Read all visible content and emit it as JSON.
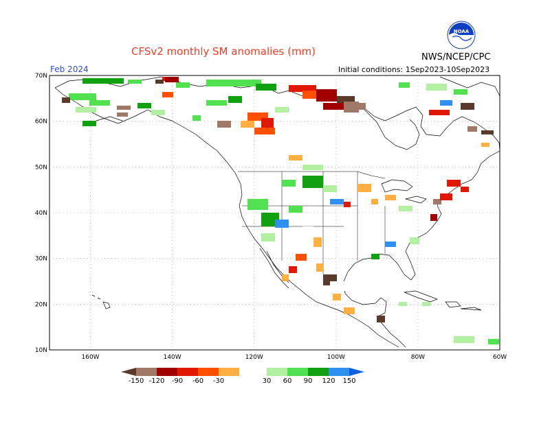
{
  "header": {
    "title": "CFSv2 monthly SM anomalies (mm)",
    "valid_month": "Feb 2024",
    "initial_conditions": "Initial conditions: 1Sep2023-10Sep2023",
    "agency": "NWS/NCEP/CPC",
    "logo_label": "NOAA"
  },
  "map": {
    "lat_labels": [
      "70N",
      "60N",
      "50N",
      "40N",
      "30N",
      "20N",
      "10N"
    ],
    "lon_labels": [
      "160W",
      "140W",
      "120W",
      "100W",
      "80W",
      "60W"
    ],
    "extent": {
      "lon_min": -170,
      "lon_max": -60,
      "lat_min": 10,
      "lat_max": 70
    }
  },
  "colorbar": {
    "labels": [
      "-150",
      "-120",
      "-90",
      "-60",
      "-30",
      "30",
      "60",
      "90",
      "120",
      "150"
    ],
    "colors": [
      "#5a3a2a",
      "#a07868",
      "#a00000",
      "#e01800",
      "#ff5000",
      "#ffb040",
      "#ffffff",
      "#b0f0a0",
      "#50e050",
      "#10a010",
      "#3090f0",
      "#1060e0"
    ]
  }
}
